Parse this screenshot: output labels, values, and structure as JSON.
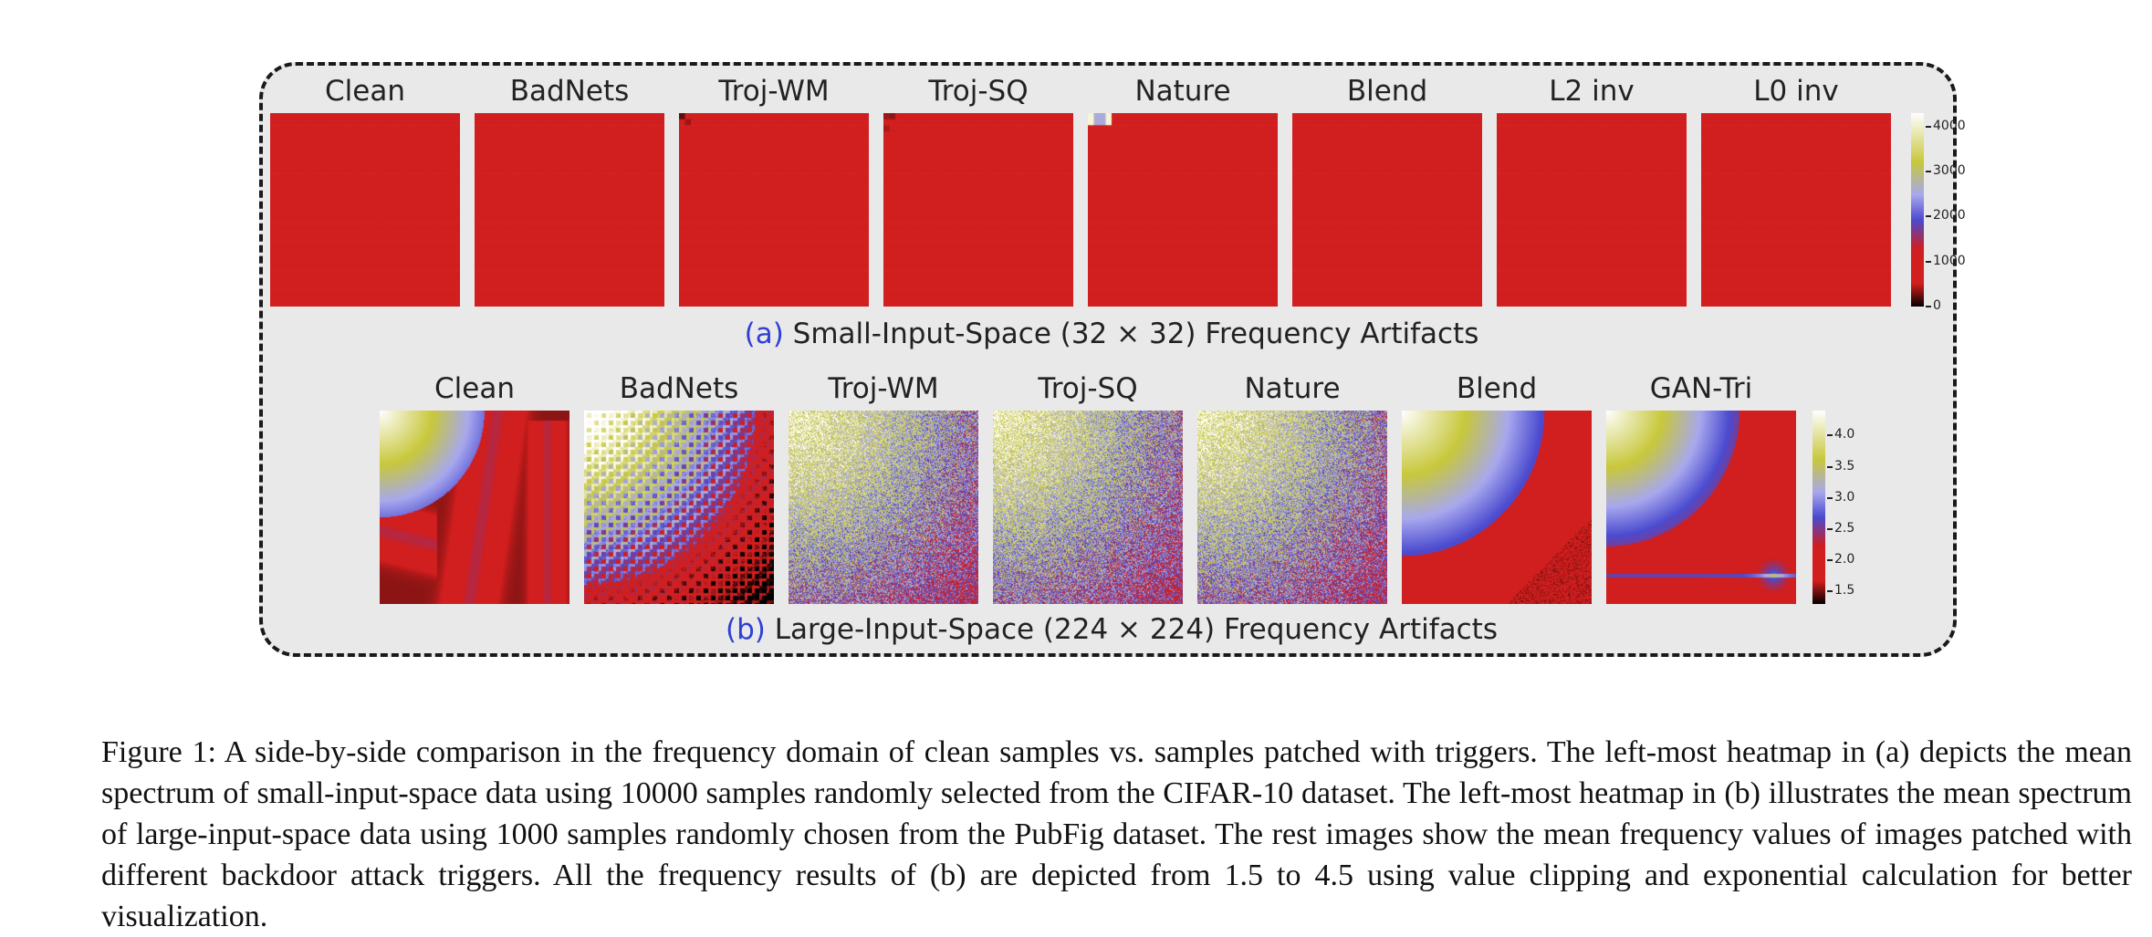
{
  "figure": {
    "row_a": {
      "panels": [
        {
          "label": "Clean"
        },
        {
          "label": "BadNets"
        },
        {
          "label": "Troj-WM"
        },
        {
          "label": "Troj-SQ"
        },
        {
          "label": "Nature"
        },
        {
          "label": "Blend"
        },
        {
          "label": "L2 inv"
        },
        {
          "label": "L0 inv"
        }
      ],
      "colorbar_ticks": [
        "4000",
        "3000",
        "2000",
        "1000",
        "0"
      ],
      "colorbar_values": [
        4000,
        3000,
        2000,
        1000,
        0
      ],
      "colorbar_range": [
        0,
        4300
      ],
      "caption_tag": "(a)",
      "caption_text": " Small-Input-Space (32 × 32) Frequency Artifacts"
    },
    "row_b": {
      "panels": [
        {
          "label": "Clean"
        },
        {
          "label": "BadNets"
        },
        {
          "label": "Troj-WM"
        },
        {
          "label": "Troj-SQ"
        },
        {
          "label": "Nature"
        },
        {
          "label": "Blend"
        },
        {
          "label": "GAN-Tri"
        }
      ],
      "colorbar_ticks": [
        "4.0",
        "3.5",
        "3.0",
        "2.5",
        "2.0",
        "1.5"
      ],
      "colorbar_values": [
        4.0,
        3.5,
        3.0,
        2.5,
        2.0,
        1.5
      ],
      "colorbar_range": [
        1.3,
        4.4
      ],
      "caption_tag": "(b)",
      "caption_text": " Large-Input-Space (224 × 224) Frequency Artifacts"
    },
    "colors": {
      "dark": "#000000",
      "red": "#d11e1e",
      "blue": "#4b4bd0",
      "lavender": "#a8a8ee",
      "yellow": "#c8c83c",
      "white": "#ffffff"
    }
  },
  "caption": "Figure 1: A side-by-side comparison in the frequency domain of clean samples vs. samples patched with triggers. The left-most heatmap in (a) depicts the mean spectrum of small-input-space data using 10000 samples randomly selected from the CIFAR-10 dataset. The left-most heatmap in (b) illustrates the mean spectrum of large-input-space data using 1000 samples randomly chosen from the PubFig dataset. The rest images show the mean frequency values of images patched with different backdoor attack triggers. All the frequency results of (b) are depicted from 1.5 to 4.5 using value clipping and exponential calculation for better visualization."
}
